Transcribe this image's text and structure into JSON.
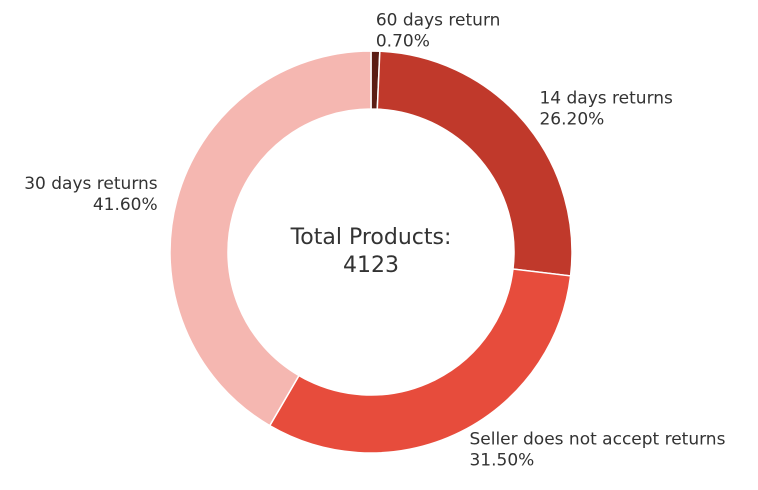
{
  "chart_data": {
    "type": "donut",
    "categories": [
      "60 days return",
      "14 days returns",
      "Seller does not accept returns",
      "30 days returns"
    ],
    "values": [
      0.7,
      26.2,
      31.5,
      41.6
    ],
    "value_labels": [
      "0.70%",
      "26.20%",
      "31.50%",
      "41.60%"
    ],
    "colors": [
      "#5b1d14",
      "#c0392b",
      "#e74c3c",
      "#f5b7b1"
    ],
    "center_label": "Total Products:",
    "total": 4123
  }
}
